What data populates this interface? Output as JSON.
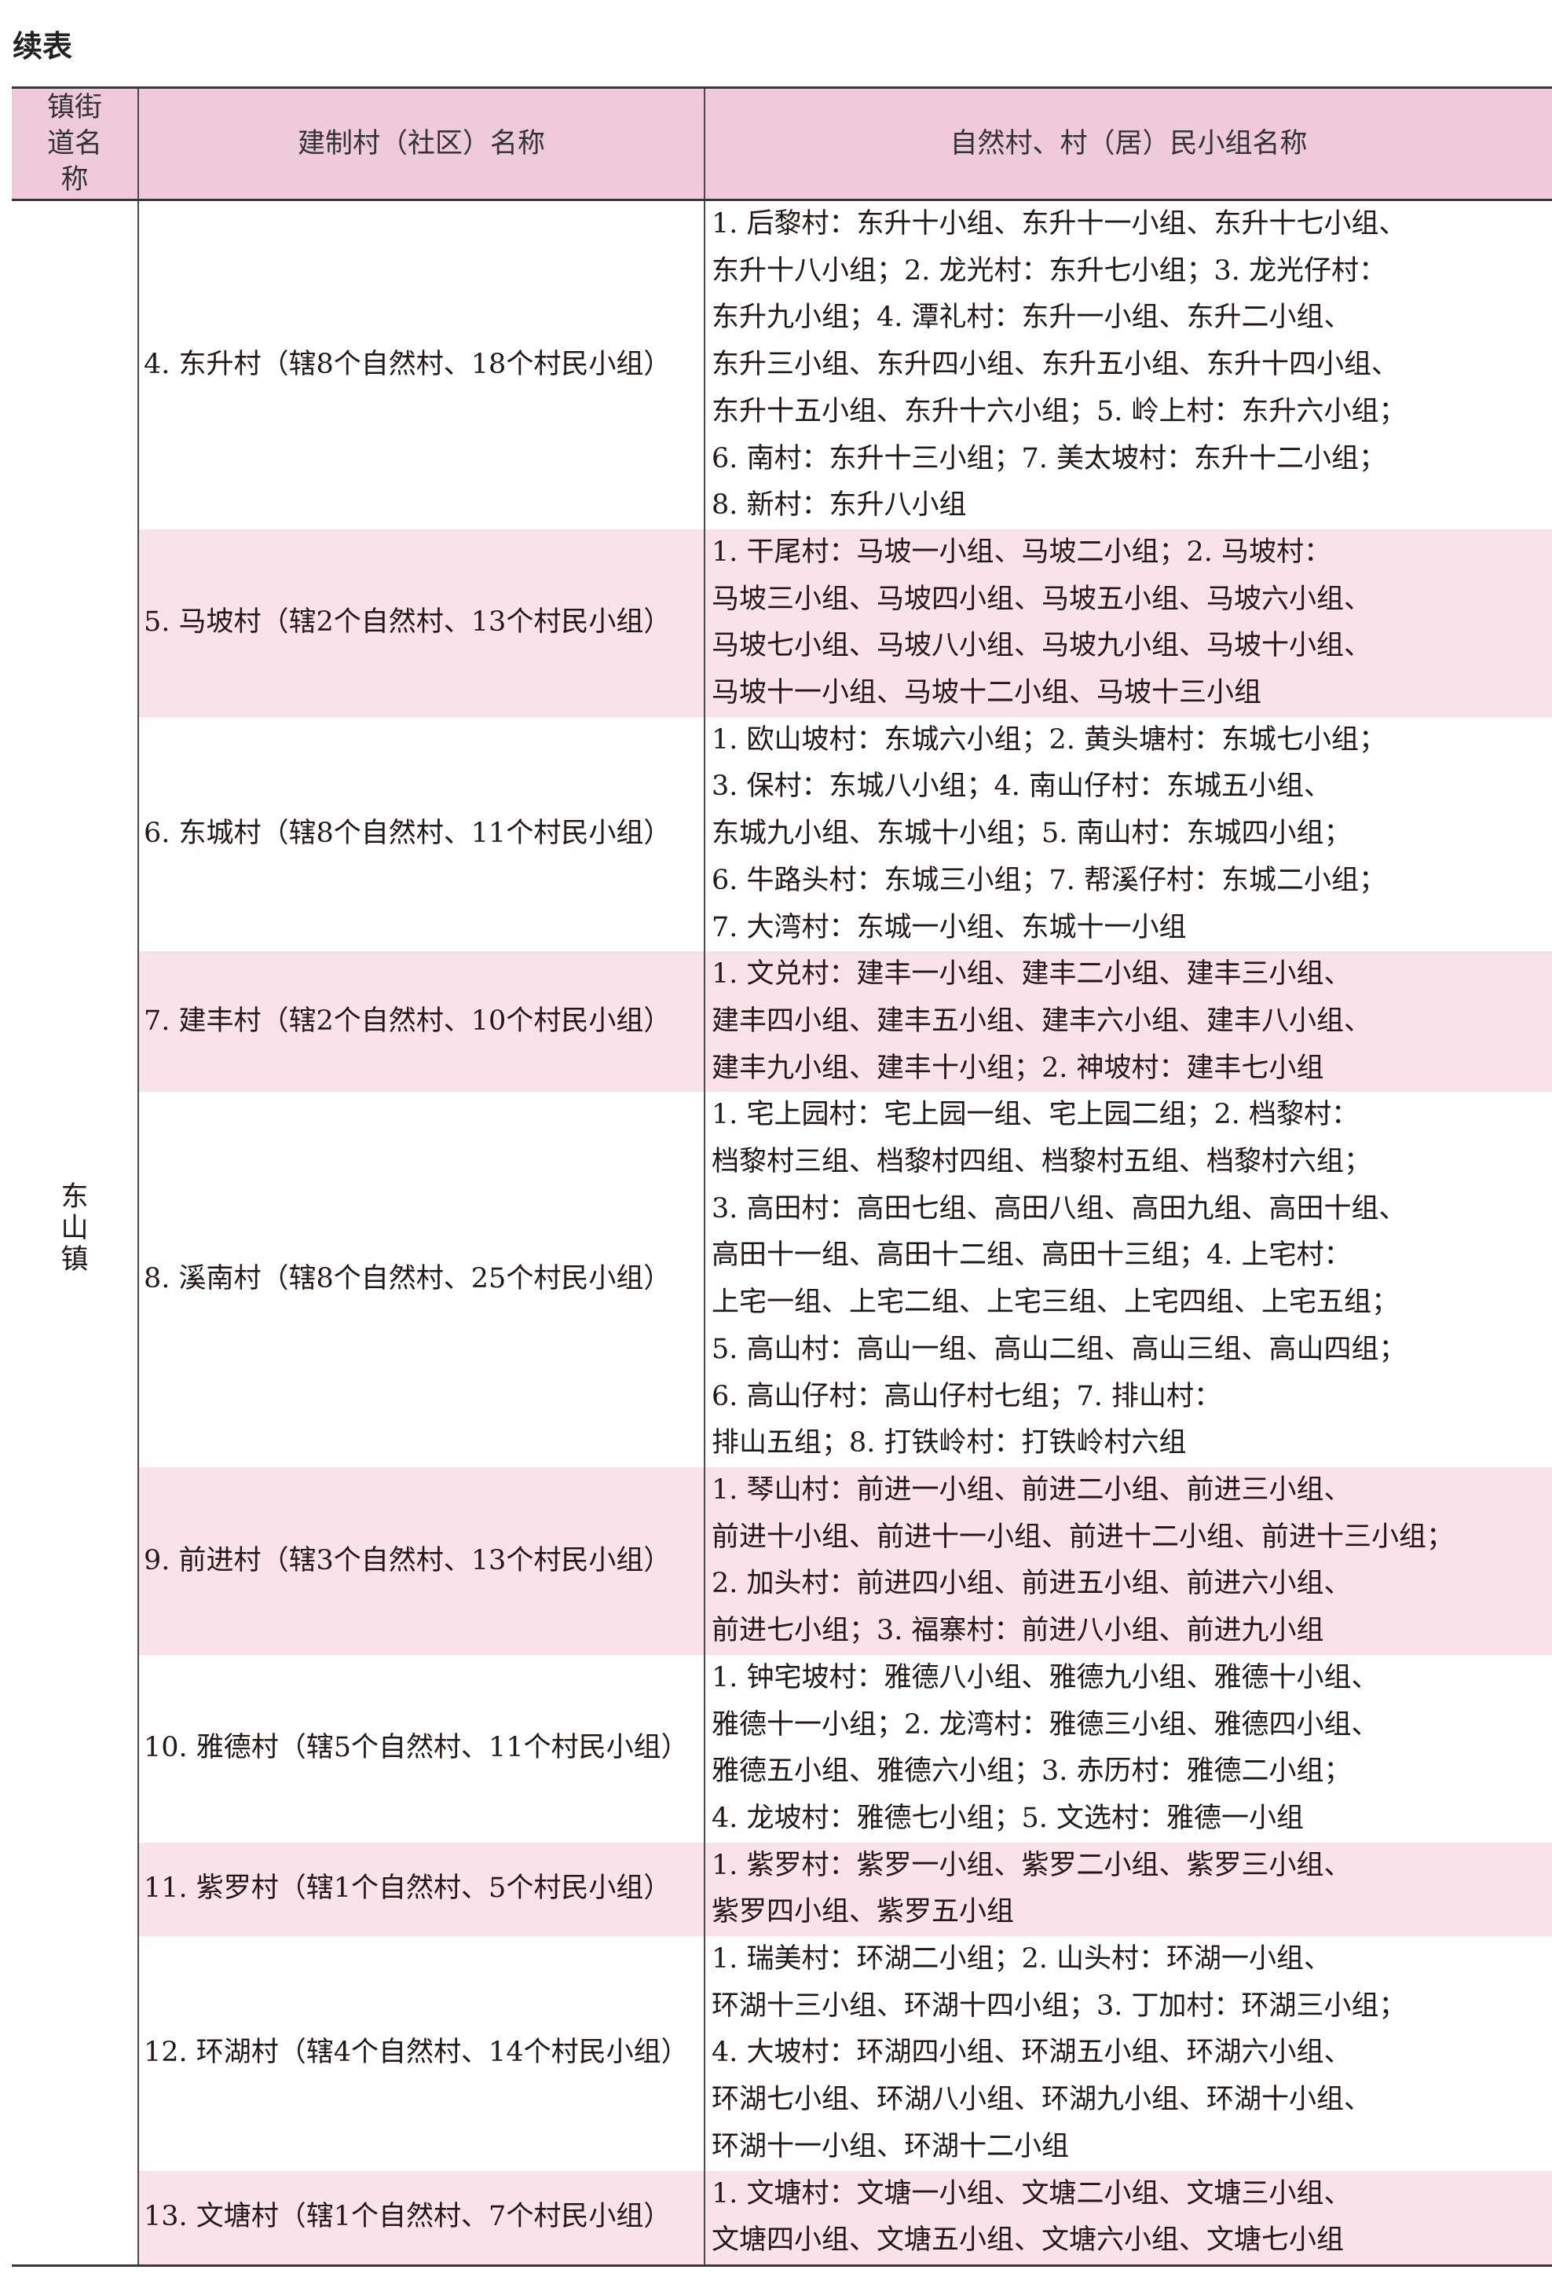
{
  "title": "续表",
  "headers": [
    "镇街道名称",
    "建制村（社区）名称",
    "自然村、村（居）民小组名称"
  ],
  "town": "东山镇",
  "colors": {
    "header_bg": "#efcadc",
    "stripe_bg": "#f9e2ea",
    "rule": "#3d3438"
  },
  "rows": [
    {
      "village": "4. 东升村（辖8个自然村、18个村民小组）",
      "lines": [
        "1. 后黎村：东升十小组、东升十一小组、东升十七小组、",
        "东升十八小组；2. 龙光村：东升七小组；3. 龙光仔村：",
        "东升九小组；4. 潭礼村：东升一小组、东升二小组、",
        "东升三小组、东升四小组、东升五小组、东升十四小组、",
        "东升十五小组、东升十六小组；5. 岭上村：东升六小组；",
        "6. 南村：东升十三小组；7. 美太坡村：东升十二小组；",
        "8. 新村：东升八小组"
      ]
    },
    {
      "village": "5. 马坡村（辖2个自然村、13个村民小组）",
      "lines": [
        "1. 干尾村：马坡一小组、马坡二小组；2. 马坡村：",
        "马坡三小组、马坡四小组、马坡五小组、马坡六小组、",
        "马坡七小组、马坡八小组、马坡九小组、马坡十小组、",
        "马坡十一小组、马坡十二小组、马坡十三小组"
      ]
    },
    {
      "village": "6. 东城村（辖8个自然村、11个村民小组）",
      "lines": [
        "1. 欧山坡村：东城六小组；2. 黄头塘村：东城七小组；",
        "3. 保村：东城八小组；4. 南山仔村：东城五小组、",
        "东城九小组、东城十小组；5. 南山村：东城四小组；",
        "6. 牛路头村：东城三小组；7. 帮溪仔村：东城二小组；",
        "7. 大湾村：东城一小组、东城十一小组"
      ]
    },
    {
      "village": "7. 建丰村（辖2个自然村、10个村民小组）",
      "lines": [
        "1. 文兑村：建丰一小组、建丰二小组、建丰三小组、",
        "建丰四小组、建丰五小组、建丰六小组、建丰八小组、",
        "建丰九小组、建丰十小组；2. 神坡村：建丰七小组"
      ]
    },
    {
      "village": "8. 溪南村（辖8个自然村、25个村民小组）",
      "lines": [
        "1. 宅上园村：宅上园一组、宅上园二组；2. 档黎村：",
        "档黎村三组、档黎村四组、档黎村五组、档黎村六组；",
        "3. 高田村：高田七组、高田八组、高田九组、高田十组、",
        "高田十一组、高田十二组、高田十三组；4. 上宅村：",
        "上宅一组、上宅二组、上宅三组、上宅四组、上宅五组；",
        "5. 高山村：高山一组、高山二组、高山三组、高山四组；",
        "6. 高山仔村：高山仔村七组；7. 排山村：",
        "排山五组；8. 打铁岭村：打铁岭村六组"
      ]
    },
    {
      "village": "9. 前进村（辖3个自然村、13个村民小组）",
      "lines": [
        "1. 琴山村：前进一小组、前进二小组、前进三小组、",
        "前进十小组、前进十一小组、前进十二小组、前进十三小组；",
        "2. 加头村：前进四小组、前进五小组、前进六小组、",
        "前进七小组；3. 福寨村：前进八小组、前进九小组"
      ]
    },
    {
      "village": "10. 雅德村（辖5个自然村、11个村民小组）",
      "lines": [
        "1. 钟宅坡村：雅德八小组、雅德九小组、雅德十小组、",
        "雅德十一小组；2. 龙湾村：雅德三小组、雅德四小组、",
        "雅德五小组、雅德六小组；3. 赤历村：雅德二小组；",
        "4. 龙坡村：雅德七小组；5. 文选村：雅德一小组"
      ]
    },
    {
      "village": "11. 紫罗村（辖1个自然村、5个村民小组）",
      "lines": [
        "1. 紫罗村：紫罗一小组、紫罗二小组、紫罗三小组、",
        "紫罗四小组、紫罗五小组"
      ]
    },
    {
      "village": "12. 环湖村（辖4个自然村、14个村民小组）",
      "lines": [
        "1. 瑞美村：环湖二小组；2. 山头村：环湖一小组、",
        "环湖十三小组、环湖十四小组；3. 丁加村：环湖三小组；",
        "4. 大坡村：环湖四小组、环湖五小组、环湖六小组、",
        "环湖七小组、环湖八小组、环湖九小组、环湖十小组、",
        "环湖十一小组、环湖十二小组"
      ]
    },
    {
      "village": "13. 文塘村（辖1个自然村、7个村民小组）",
      "lines": [
        "1. 文塘村：文塘一小组、文塘二小组、文塘三小组、",
        "文塘四小组、文塘五小组、文塘六小组、文塘七小组"
      ]
    }
  ]
}
